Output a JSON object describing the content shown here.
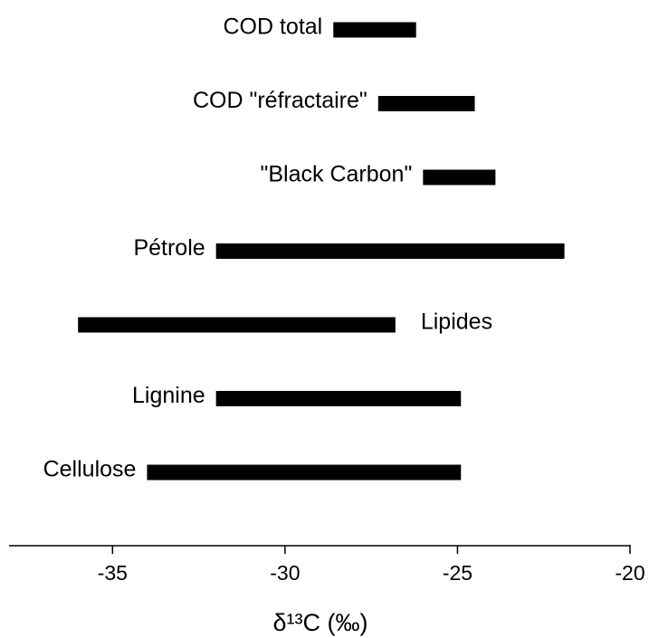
{
  "chart_data": {
    "type": "range_bar",
    "categories": [
      "COD total",
      "COD \"réfractaire\"",
      "\"Black Carbon\"",
      "Pétrole",
      "Lipides",
      "Lignine",
      "Cellulose"
    ],
    "values": [
      [
        -28.6,
        -26.2
      ],
      [
        -27.3,
        -24.5
      ],
      [
        -26.0,
        -23.9
      ],
      [
        -32.0,
        -21.9
      ],
      [
        -36.0,
        -26.8
      ],
      [
        -32.0,
        -24.9
      ],
      [
        -34.0,
        -24.9
      ]
    ],
    "color": "#000000",
    "xlabel": "δ¹³C (‰)",
    "xlim": [
      -38,
      -20
    ],
    "xticks": [
      -35,
      -30,
      -25,
      -20
    ]
  }
}
